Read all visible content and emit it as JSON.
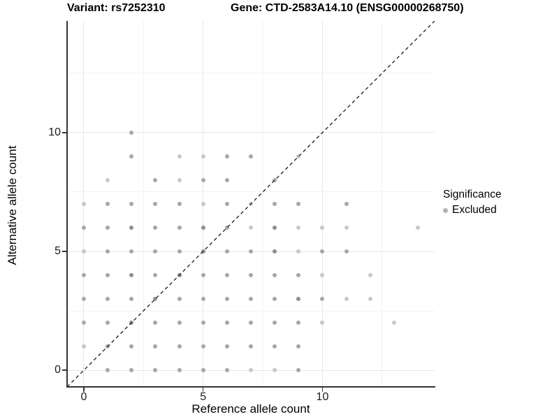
{
  "titles": {
    "variant": "Variant: rs7252310",
    "gene": "Gene: CTD-2583A14.10 (ENSG00000268750)"
  },
  "legend": {
    "title": "Significance",
    "items": [
      {
        "label": "Excluded",
        "color": "#b3b3b3"
      }
    ]
  },
  "colors": {
    "axis": "#333333",
    "grid_major": "#e6e6e6",
    "grid_minor": "#f2f2f2",
    "diagonal": "#1a1a1a",
    "overlap_shades": {
      "1": "#c8c8c8",
      "2": "#a7a7a7",
      "3": "#8f8f8f"
    }
  },
  "chart_data": {
    "type": "scatter",
    "title_variant": "Variant: rs7252310",
    "title_gene": "Gene: CTD-2583A14.10 (ENSG00000268750)",
    "xlabel": "Reference allele count",
    "ylabel": "Alternative allele count",
    "xlim": [
      -0.7,
      14.7
    ],
    "ylim": [
      -0.7,
      14.7
    ],
    "xticks": [
      0,
      5,
      10
    ],
    "yticks": [
      0,
      5,
      10
    ],
    "minor_x": [
      2.5,
      7.5,
      12.5
    ],
    "minor_y": [
      2.5,
      7.5,
      12.5
    ],
    "grid": true,
    "legend_position": "right",
    "diagonal_line": {
      "type": "identity y=x",
      "style": "dashed",
      "color": "#1a1a1a"
    },
    "point_format": "[reference_allele_count, alternative_allele_count, overplot_level]",
    "series": [
      {
        "name": "Excluded",
        "points": [
          [
            2,
            10,
            2
          ],
          [
            2,
            9,
            2
          ],
          [
            4,
            9,
            1
          ],
          [
            5,
            9,
            1
          ],
          [
            6,
            9,
            2
          ],
          [
            7,
            9,
            2
          ],
          [
            9,
            9,
            1
          ],
          [
            1,
            8,
            1
          ],
          [
            3,
            8,
            2
          ],
          [
            4,
            8,
            1
          ],
          [
            5,
            8,
            2
          ],
          [
            6,
            8,
            2
          ],
          [
            8,
            8,
            2
          ],
          [
            0,
            7,
            1
          ],
          [
            1,
            7,
            2
          ],
          [
            2,
            7,
            2
          ],
          [
            3,
            7,
            2
          ],
          [
            4,
            7,
            2
          ],
          [
            5,
            7,
            1
          ],
          [
            6,
            7,
            2
          ],
          [
            7,
            7,
            1
          ],
          [
            8,
            7,
            2
          ],
          [
            9,
            7,
            2
          ],
          [
            11,
            7,
            2
          ],
          [
            0,
            6,
            2
          ],
          [
            1,
            6,
            2
          ],
          [
            2,
            6,
            3
          ],
          [
            3,
            6,
            2
          ],
          [
            4,
            6,
            2
          ],
          [
            5,
            6,
            3
          ],
          [
            6,
            6,
            2
          ],
          [
            7,
            6,
            1
          ],
          [
            8,
            6,
            3
          ],
          [
            9,
            6,
            1
          ],
          [
            10,
            6,
            1
          ],
          [
            11,
            6,
            1
          ],
          [
            14,
            6,
            1
          ],
          [
            0,
            5,
            1
          ],
          [
            1,
            5,
            2
          ],
          [
            2,
            5,
            2
          ],
          [
            3,
            5,
            2
          ],
          [
            4,
            5,
            2
          ],
          [
            5,
            5,
            3
          ],
          [
            6,
            5,
            2
          ],
          [
            7,
            5,
            2
          ],
          [
            8,
            5,
            3
          ],
          [
            9,
            5,
            1
          ],
          [
            10,
            5,
            2
          ],
          [
            11,
            5,
            2
          ],
          [
            0,
            4,
            2
          ],
          [
            1,
            4,
            2
          ],
          [
            2,
            4,
            3
          ],
          [
            3,
            4,
            2
          ],
          [
            4,
            4,
            3
          ],
          [
            5,
            4,
            2
          ],
          [
            6,
            4,
            2
          ],
          [
            7,
            4,
            2
          ],
          [
            8,
            4,
            2
          ],
          [
            9,
            4,
            2
          ],
          [
            10,
            4,
            1
          ],
          [
            12,
            4,
            1
          ],
          [
            0,
            3,
            2
          ],
          [
            1,
            3,
            2
          ],
          [
            2,
            3,
            2
          ],
          [
            3,
            3,
            3
          ],
          [
            4,
            3,
            2
          ],
          [
            5,
            3,
            2
          ],
          [
            6,
            3,
            2
          ],
          [
            7,
            3,
            2
          ],
          [
            8,
            3,
            2
          ],
          [
            9,
            3,
            3
          ],
          [
            10,
            3,
            2
          ],
          [
            11,
            3,
            1
          ],
          [
            12,
            3,
            1
          ],
          [
            0,
            2,
            2
          ],
          [
            1,
            2,
            2
          ],
          [
            2,
            2,
            3
          ],
          [
            3,
            2,
            2
          ],
          [
            4,
            2,
            2
          ],
          [
            5,
            2,
            2
          ],
          [
            6,
            2,
            2
          ],
          [
            7,
            2,
            2
          ],
          [
            8,
            2,
            2
          ],
          [
            9,
            2,
            2
          ],
          [
            10,
            2,
            1
          ],
          [
            13,
            2,
            1
          ],
          [
            0,
            1,
            1
          ],
          [
            1,
            1,
            2
          ],
          [
            2,
            1,
            2
          ],
          [
            3,
            1,
            2
          ],
          [
            4,
            1,
            2
          ],
          [
            5,
            1,
            2
          ],
          [
            6,
            1,
            2
          ],
          [
            7,
            1,
            2
          ],
          [
            8,
            1,
            2
          ],
          [
            9,
            1,
            2
          ],
          [
            1,
            0,
            2
          ],
          [
            2,
            0,
            2
          ],
          [
            3,
            0,
            2
          ],
          [
            4,
            0,
            2
          ],
          [
            5,
            0,
            2
          ],
          [
            6,
            0,
            2
          ],
          [
            7,
            0,
            1
          ],
          [
            8,
            0,
            1
          ],
          [
            9,
            0,
            2
          ]
        ]
      }
    ]
  }
}
